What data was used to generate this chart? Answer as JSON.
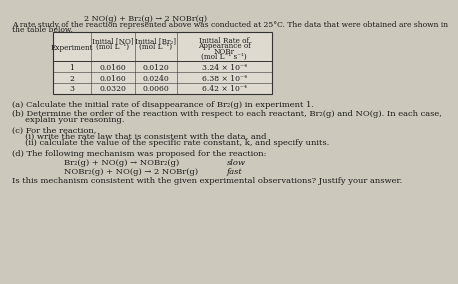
{
  "title_reaction": "2 NO(g) + Br₂(g) → 2 NOBr(g)",
  "intro_line1": "A rate study of the reaction represented above was conducted at 25°C. The data that were obtained are shown in",
  "intro_line2": "the table below.",
  "table_headers_line1": [
    "Experiment",
    "Initial [NO]",
    "Initial [Br₂]",
    "Initial Rate of"
  ],
  "table_headers_line2": [
    "",
    "(mol L⁻¹)",
    "(mol L⁻¹)",
    "Appearance of"
  ],
  "table_headers_line3": [
    "",
    "",
    "",
    "NOBr"
  ],
  "table_headers_line4": [
    "",
    "",
    "",
    "(mol L⁻¹ s⁻¹)"
  ],
  "table_rows": [
    [
      "1",
      "0.0160",
      "0.0120",
      "3.24 × 10⁻⁴"
    ],
    [
      "2",
      "0.0160",
      "0.0240",
      "6.38 × 10⁻⁴"
    ],
    [
      "3",
      "0.0320",
      "0.0060",
      "6.42 × 10⁻⁴"
    ]
  ],
  "q_a": "(a) Calculate the initial rate of disappearance of Br₂(g) in experiment 1.",
  "q_b1": "(b) Determine the order of the reaction with respect to each reactant, Br₂(g) and NO(g). In each case,",
  "q_b2": "     explain your reasoning.",
  "q_c": "(c) For the reaction,",
  "q_ci": "     (i) write the rate law that is consistent with the data, and",
  "q_cii": "     (ii) calculate the value of the specific rate constant, k, and specify units.",
  "q_d": "(d) The following mechanism was proposed for the reaction:",
  "mech1": "Br₂(g) + NO(g) → NOBr₂(g)",
  "mech1_label": "slow",
  "mech2": "NOBr₂(g) + NO(g) → 2 NOBr(g)",
  "mech2_label": "fast",
  "final_q": "Is this mechanism consistent with the given experimental observations? Justify your answer.",
  "bg_color": "#cdc8bc",
  "text_color": "#1a1a1a",
  "table_bg": "#dedad0",
  "fs_title": 5.8,
  "fs_intro": 5.5,
  "fs_body": 6.0,
  "fs_table_hdr": 5.2,
  "fs_table_data": 5.5
}
